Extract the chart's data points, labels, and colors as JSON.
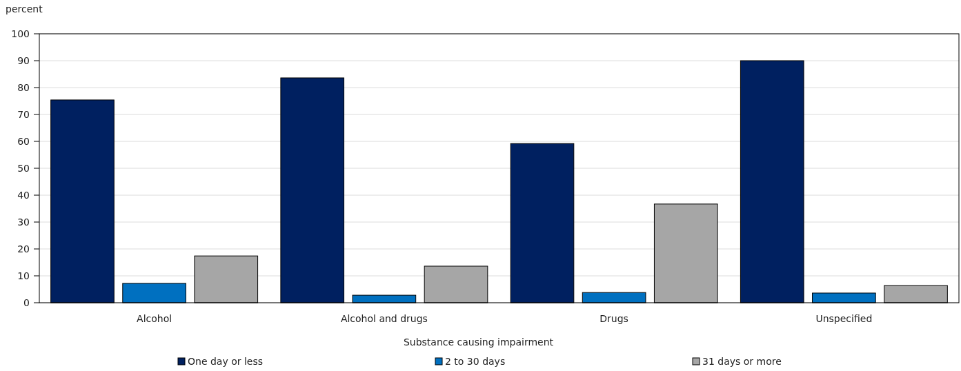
{
  "chart_data": {
    "type": "bar",
    "ylabel": "percent",
    "xlabel": "Substance causing impairment",
    "categories": [
      "Alcohol",
      "Alcohol and drugs",
      "Drugs",
      "Unspecified"
    ],
    "series": [
      {
        "name": "One day or less",
        "color": "#002060",
        "values": [
          75.4,
          83.6,
          59.2,
          90.0
        ]
      },
      {
        "name": "2 to 30 days",
        "color": "#0070c0",
        "values": [
          7.2,
          2.8,
          3.8,
          3.6
        ]
      },
      {
        "name": "31 days or more",
        "color": "#a6a6a6",
        "values": [
          17.4,
          13.6,
          36.7,
          6.4
        ]
      }
    ],
    "ylim": [
      0,
      100
    ],
    "yticks": [
      0,
      10,
      20,
      30,
      40,
      50,
      60,
      70,
      80,
      90,
      100
    ],
    "grid": "y",
    "legend": "bottom"
  }
}
